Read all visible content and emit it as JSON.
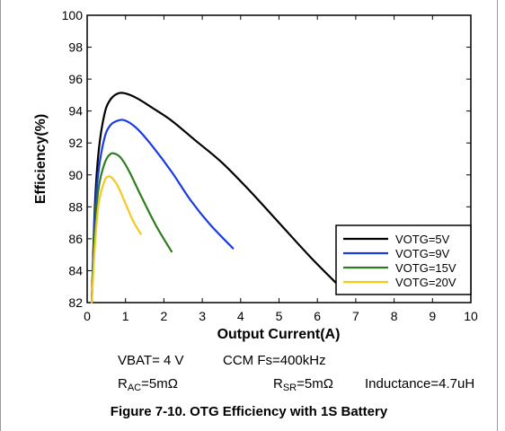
{
  "chart_data": {
    "type": "line",
    "xlabel": "Output Current(A)",
    "ylabel": "Efficiency(%)",
    "xlim": [
      0,
      10
    ],
    "ylim": [
      82,
      100
    ],
    "xticks": [
      "0",
      "1",
      "2",
      "3",
      "4",
      "5",
      "6",
      "7",
      "8",
      "9",
      "10"
    ],
    "yticks": [
      "82",
      "84",
      "86",
      "88",
      "90",
      "92",
      "94",
      "96",
      "98",
      "100"
    ],
    "grid": false,
    "legend_position": "bottom-right",
    "series": [
      {
        "name": "VOTG=5V",
        "color": "#000000",
        "x": [
          0.12,
          0.2,
          0.3,
          0.45,
          0.6,
          0.8,
          1.0,
          1.3,
          1.7,
          2.2,
          2.8,
          3.5,
          4.2,
          5.0,
          5.8,
          6.5
        ],
        "y": [
          82.0,
          88.0,
          91.5,
          93.8,
          94.7,
          95.1,
          95.1,
          94.8,
          94.2,
          93.4,
          92.2,
          90.8,
          89.1,
          87.0,
          84.9,
          83.2
        ]
      },
      {
        "name": "VOTG=9V",
        "color": "#1a3be0",
        "x": [
          0.12,
          0.2,
          0.3,
          0.45,
          0.6,
          0.8,
          1.0,
          1.3,
          1.7,
          2.2,
          2.7,
          3.2,
          3.8
        ],
        "y": [
          82.0,
          87.5,
          90.3,
          92.3,
          93.1,
          93.4,
          93.4,
          92.9,
          91.8,
          90.2,
          88.4,
          86.9,
          85.4
        ]
      },
      {
        "name": "VOTG=15V",
        "color": "#2e7d1f",
        "x": [
          0.12,
          0.2,
          0.3,
          0.45,
          0.6,
          0.75,
          0.9,
          1.1,
          1.4,
          1.8,
          2.2
        ],
        "y": [
          82.0,
          86.5,
          89.2,
          90.7,
          91.3,
          91.3,
          91.0,
          90.2,
          88.7,
          86.8,
          85.2
        ]
      },
      {
        "name": "VOTG=20V",
        "color": "#f5c81e",
        "x": [
          0.12,
          0.2,
          0.3,
          0.45,
          0.55,
          0.65,
          0.8,
          1.0,
          1.2,
          1.4
        ],
        "y": [
          82.0,
          85.5,
          88.2,
          89.6,
          89.9,
          89.8,
          89.3,
          88.2,
          87.1,
          86.3
        ]
      }
    ]
  },
  "conditions": {
    "vbat": "VBAT= 4 V",
    "ccm": "CCM Fs=400kHz",
    "rac_label": "R",
    "rac_sub": "AC",
    "rac_value": "=5mΩ",
    "rsr_label": "R",
    "rsr_sub": "SR",
    "rsr_value": "=5mΩ",
    "inductance": "Inductance=4.7uH"
  },
  "caption": "Figure 7-10. OTG Efficiency with 1S Battery"
}
